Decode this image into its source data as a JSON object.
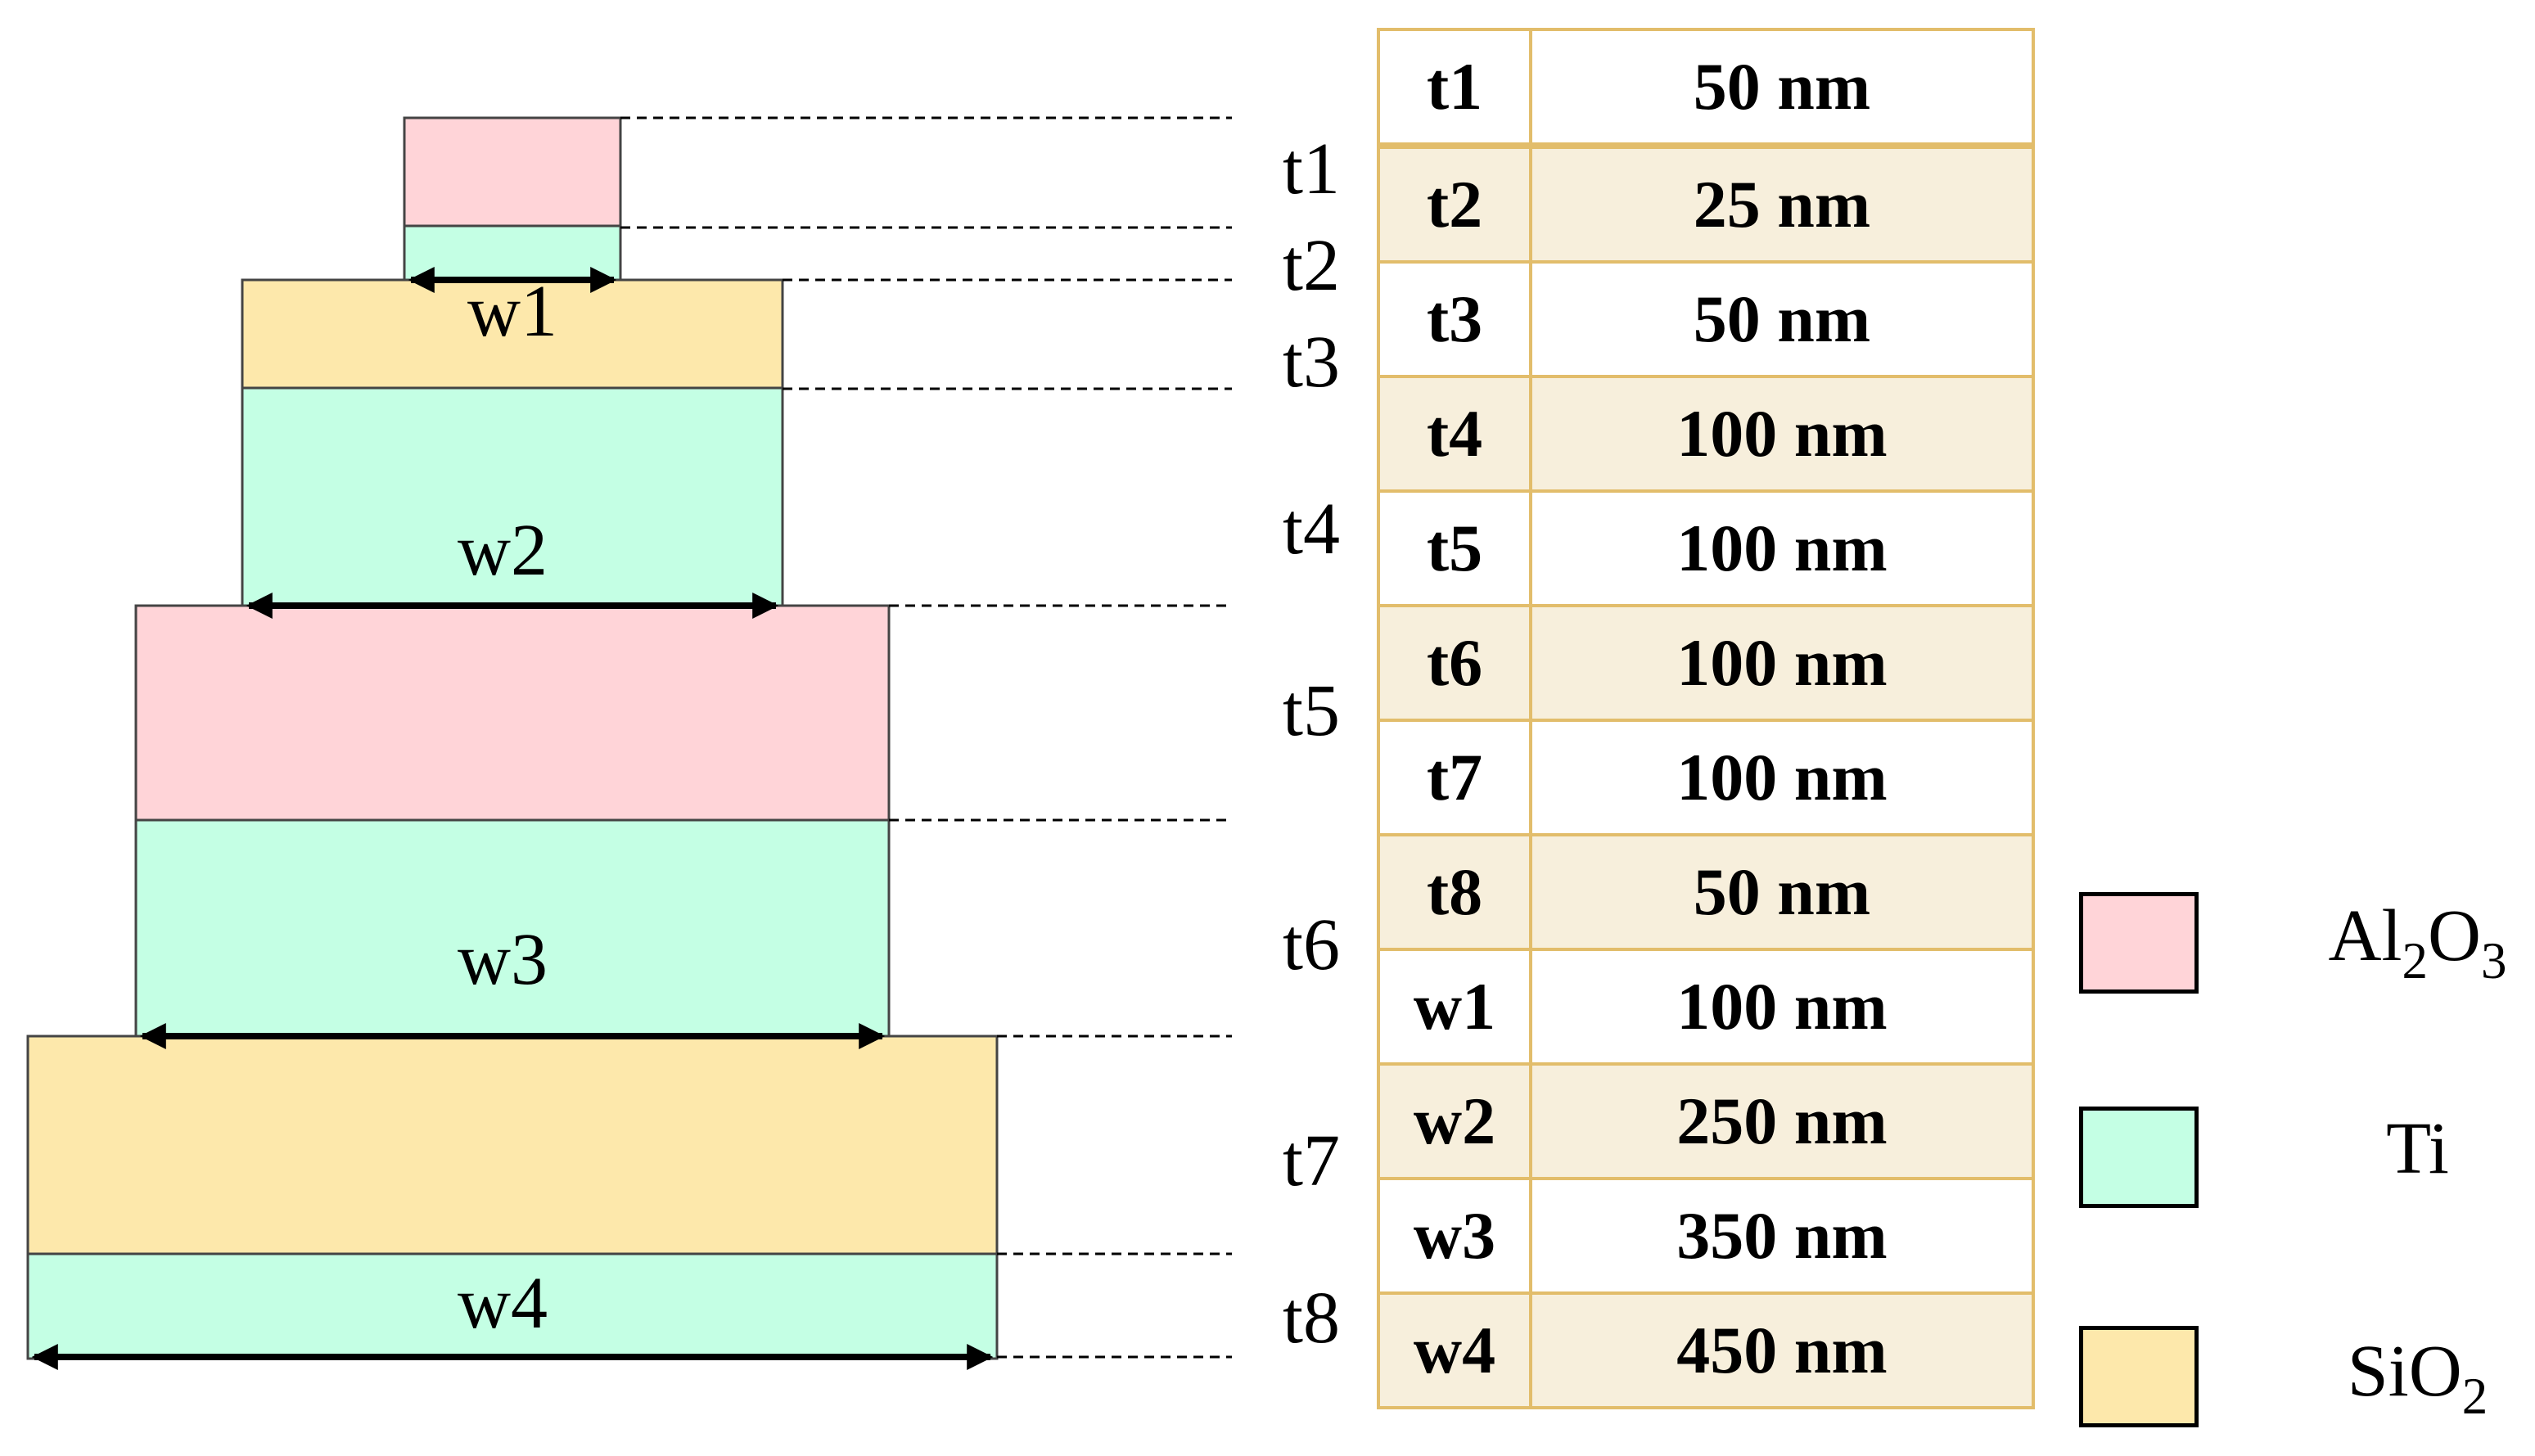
{
  "colors": {
    "al2o3": "#ffd4d8",
    "ti": "#c4ffe4",
    "sio2": "#fde8ab",
    "table_border": "#e2bd6b",
    "row_alt": "#f7efdc"
  },
  "diagram": {
    "thickness_labels": [
      "t1",
      "t2",
      "t3",
      "t4",
      "t5",
      "t6",
      "t7",
      "t8"
    ],
    "width_labels": [
      "w1",
      "w2",
      "w3",
      "w4"
    ]
  },
  "table": {
    "rows": [
      {
        "key": "t1",
        "value": "50 nm"
      },
      {
        "key": "t2",
        "value": "25 nm"
      },
      {
        "key": "t3",
        "value": "50 nm"
      },
      {
        "key": "t4",
        "value": "100 nm"
      },
      {
        "key": "t5",
        "value": "100 nm"
      },
      {
        "key": "t6",
        "value": "100 nm"
      },
      {
        "key": "t7",
        "value": "100 nm"
      },
      {
        "key": "t8",
        "value": "50 nm"
      },
      {
        "key": "w1",
        "value": "100 nm"
      },
      {
        "key": "w2",
        "value": "250 nm"
      },
      {
        "key": "w3",
        "value": "350 nm"
      },
      {
        "key": "w4",
        "value": "450 nm"
      }
    ]
  },
  "legend": {
    "al2o3": {
      "base": "Al",
      "sub1": "2",
      "mid": "O",
      "sub2": "3"
    },
    "ti": {
      "label": "Ti"
    },
    "sio2": {
      "base": "SiO",
      "sub": "2"
    }
  }
}
